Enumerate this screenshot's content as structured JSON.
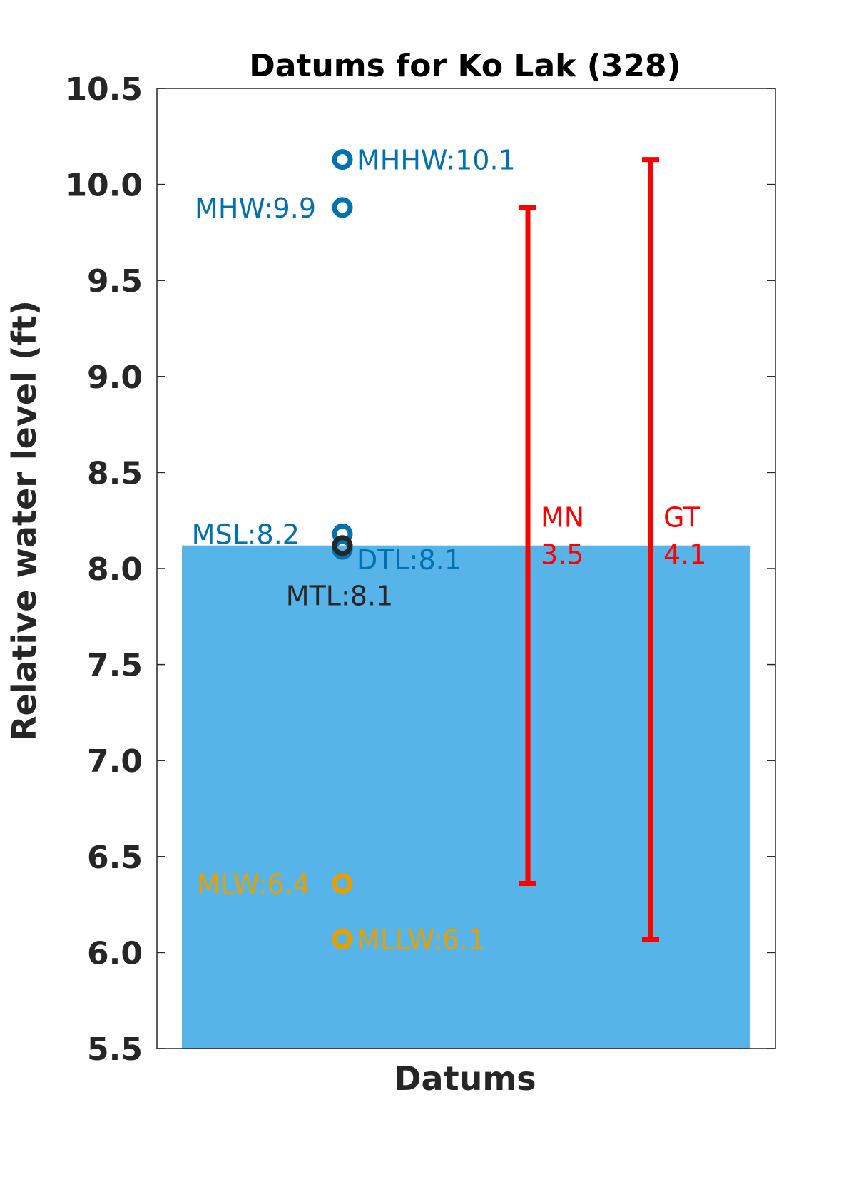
{
  "chart_data": {
    "type": "scatter",
    "title": "Datums for Ko Lak (328)",
    "xlabel": "Datums",
    "ylabel": "Relative water level (ft)",
    "ylim": [
      5.5,
      10.5
    ],
    "yticks": [
      "5.5",
      "6.0",
      "6.5",
      "7.0",
      "7.5",
      "8.0",
      "8.5",
      "9.0",
      "9.5",
      "10.0",
      "10.5"
    ],
    "grid": false,
    "bar": {
      "value": 8.12,
      "color": "#56B4E9"
    },
    "points": [
      {
        "label": "MHHW:10.1",
        "value": 10.13,
        "color": "#0072B2"
      },
      {
        "label": "MHW:9.9",
        "value": 9.88,
        "color": "#0072B2"
      },
      {
        "label": "MSL:8.2",
        "value": 8.18,
        "color": "#0072B2"
      },
      {
        "label": "DTL:8.1",
        "value": 8.1,
        "color": "#0072B2"
      },
      {
        "label": "MTL:8.1",
        "value": 8.12,
        "color": "#262626"
      },
      {
        "label": "MLW:6.4",
        "value": 6.36,
        "color": "#E69F00"
      },
      {
        "label": "MLLW:6.1",
        "value": 6.07,
        "color": "#E69F00"
      }
    ],
    "ranges": [
      {
        "name": "MN",
        "value": "3.5",
        "low": 6.36,
        "high": 9.88,
        "color": "#FF0000"
      },
      {
        "name": "GT",
        "value": "4.1",
        "low": 6.07,
        "high": 10.13,
        "color": "#FF0000"
      }
    ]
  }
}
